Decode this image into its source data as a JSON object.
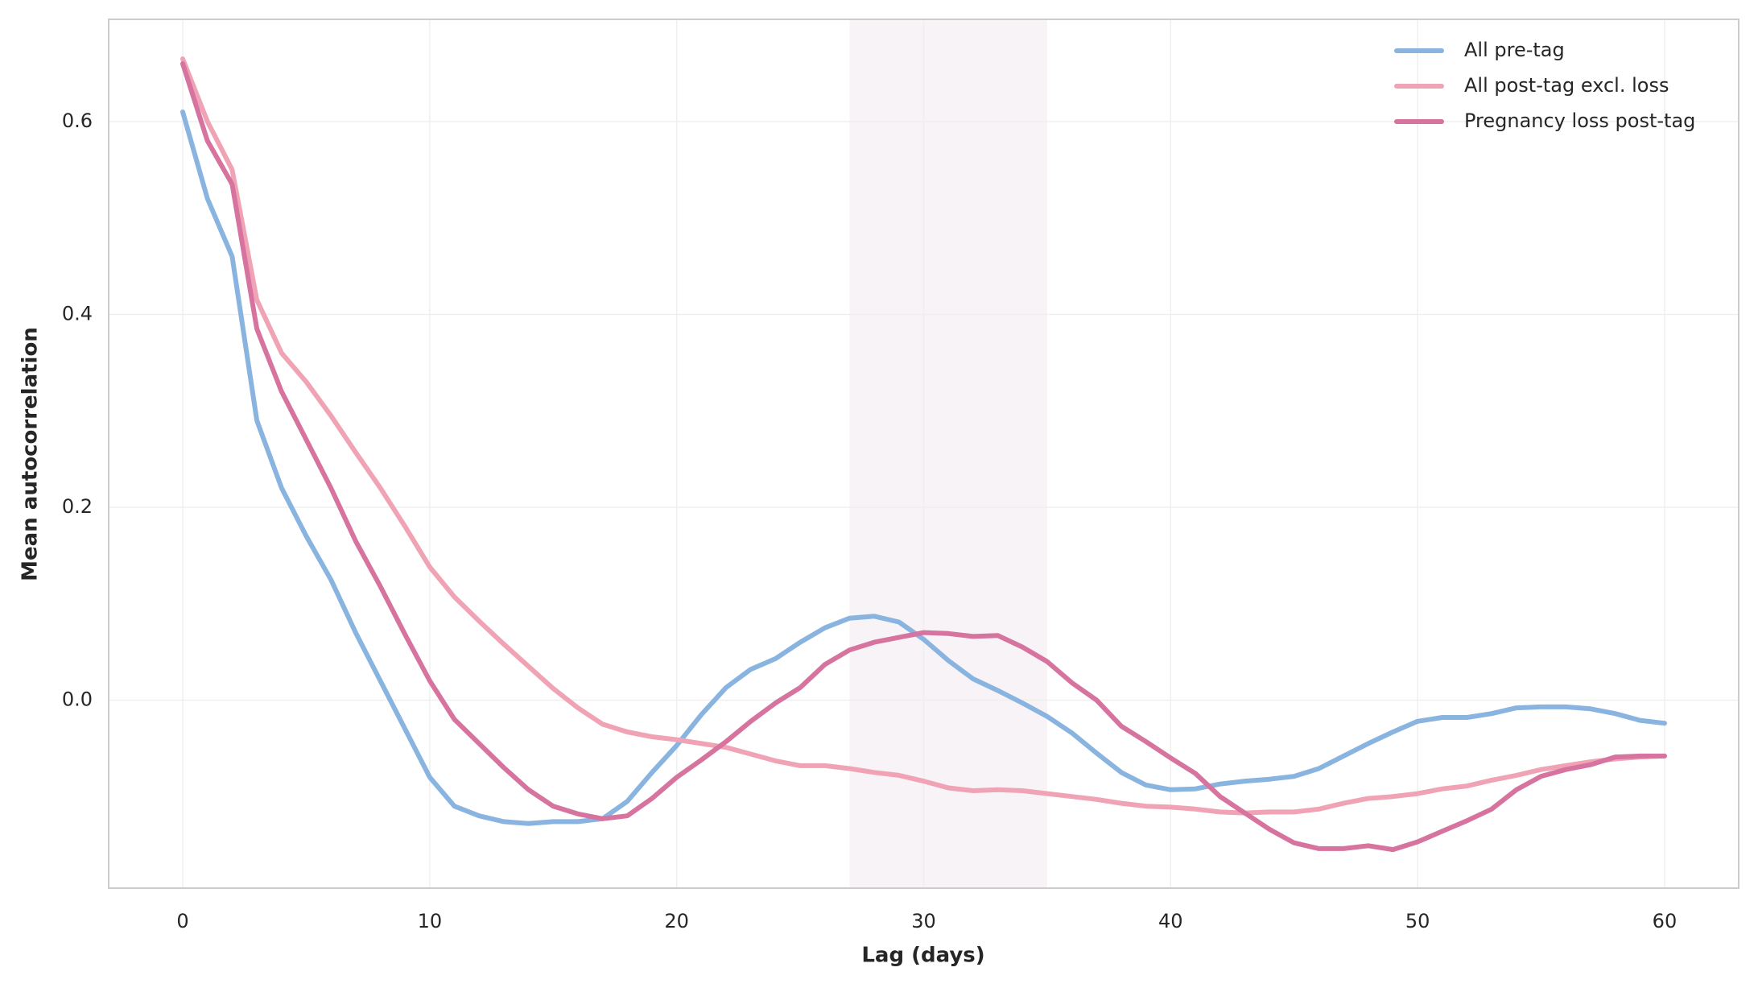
{
  "chart_data": {
    "type": "line",
    "xlabel": "Lag (days)",
    "ylabel": "Mean autocorrelation",
    "x": [
      0,
      1,
      2,
      3,
      4,
      5,
      6,
      7,
      8,
      9,
      10,
      11,
      12,
      13,
      14,
      15,
      16,
      17,
      18,
      19,
      20,
      21,
      22,
      23,
      24,
      25,
      26,
      27,
      28,
      29,
      30,
      31,
      32,
      33,
      34,
      35,
      36,
      37,
      38,
      39,
      40,
      41,
      42,
      43,
      44,
      45,
      46,
      47,
      48,
      49,
      50,
      51,
      52,
      53,
      54,
      55,
      56,
      57,
      58,
      59,
      60
    ],
    "series": [
      {
        "name": "All pre-tag",
        "color": "#8ab4e0",
        "values": [
          0.61,
          0.52,
          0.46,
          0.29,
          0.22,
          0.17,
          0.125,
          0.07,
          0.02,
          -0.03,
          -0.08,
          -0.11,
          -0.12,
          -0.126,
          -0.128,
          -0.126,
          -0.126,
          -0.123,
          -0.105,
          -0.075,
          -0.047,
          -0.015,
          0.013,
          0.032,
          0.043,
          0.06,
          0.075,
          0.085,
          0.087,
          0.081,
          0.063,
          0.041,
          0.022,
          0.01,
          -0.003,
          -0.017,
          -0.034,
          -0.055,
          -0.075,
          -0.088,
          -0.093,
          -0.092,
          -0.087,
          -0.084,
          -0.082,
          -0.079,
          -0.071,
          -0.058,
          -0.045,
          -0.033,
          -0.022,
          -0.018,
          -0.018,
          -0.014,
          -0.008,
          -0.007,
          -0.007,
          -0.009,
          -0.014,
          -0.021,
          -0.024
        ]
      },
      {
        "name": "All post-tag excl. loss",
        "color": "#f0a3b4",
        "values": [
          0.665,
          0.6,
          0.55,
          0.415,
          0.36,
          0.33,
          0.295,
          0.257,
          0.22,
          0.18,
          0.138,
          0.107,
          0.082,
          0.058,
          0.035,
          0.012,
          -0.008,
          -0.025,
          -0.033,
          -0.038,
          -0.041,
          -0.045,
          -0.049,
          -0.056,
          -0.063,
          -0.068,
          -0.068,
          -0.071,
          -0.075,
          -0.078,
          -0.084,
          -0.091,
          -0.094,
          -0.093,
          -0.094,
          -0.097,
          -0.1,
          -0.103,
          -0.107,
          -0.11,
          -0.111,
          -0.113,
          -0.116,
          -0.117,
          -0.116,
          -0.116,
          -0.113,
          -0.107,
          -0.102,
          -0.1,
          -0.097,
          -0.092,
          -0.089,
          -0.083,
          -0.078,
          -0.072,
          -0.068,
          -0.064,
          -0.061,
          -0.059,
          -0.058
        ]
      },
      {
        "name": "Pregnancy loss post-tag",
        "color": "#d6739e",
        "values": [
          0.66,
          0.58,
          0.535,
          0.385,
          0.32,
          0.27,
          0.22,
          0.165,
          0.118,
          0.068,
          0.02,
          -0.02,
          -0.045,
          -0.07,
          -0.093,
          -0.11,
          -0.118,
          -0.123,
          -0.12,
          -0.102,
          -0.08,
          -0.062,
          -0.043,
          -0.022,
          -0.003,
          0.013,
          0.037,
          0.052,
          0.06,
          0.065,
          0.07,
          0.069,
          0.066,
          0.067,
          0.055,
          0.04,
          0.018,
          0.0,
          -0.027,
          -0.043,
          -0.06,
          -0.076,
          -0.1,
          -0.117,
          -0.134,
          -0.148,
          -0.154,
          -0.154,
          -0.151,
          -0.155,
          -0.147,
          -0.136,
          -0.125,
          -0.113,
          -0.093,
          -0.079,
          -0.072,
          -0.067,
          -0.059,
          -0.058,
          -0.058
        ]
      }
    ],
    "highlight_span": [
      27,
      35
    ],
    "highlight_color": "#f7f3f6",
    "xlim": [
      -3,
      63
    ],
    "ylim": [
      -0.195,
      0.706
    ],
    "xticks": [
      0,
      10,
      20,
      30,
      40,
      50,
      60
    ],
    "yticks": [
      {
        "value": 0,
        "label": "0.0"
      },
      0.2,
      0.4,
      0.6
    ],
    "grid": true,
    "legend": "upper right"
  }
}
